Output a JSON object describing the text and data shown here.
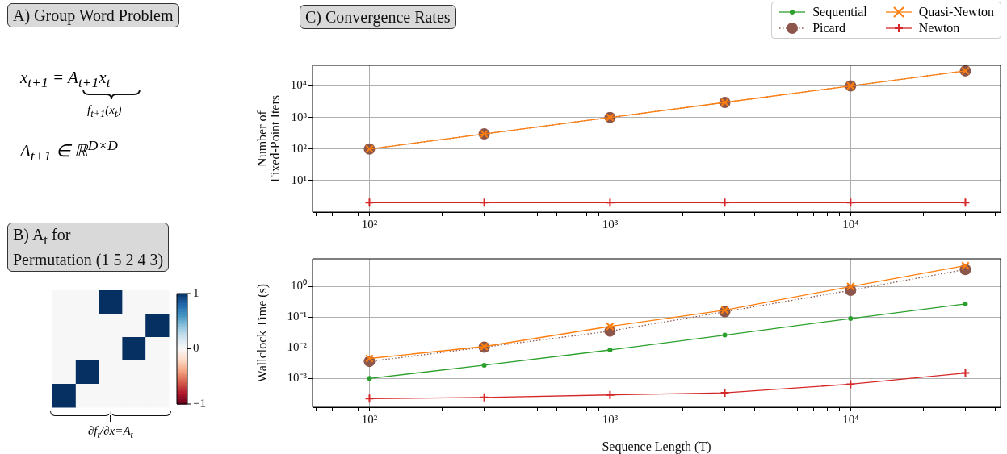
{
  "chart_data": [
    {
      "type": "other",
      "title": "A) Group Word Problem",
      "annotations": [
        "x$_{t+1}$ = A$_{t+1}$x$_{t}$",
        "f$_{t+1}$(x$_{t}$)",
        "A$_{t+1}$ ∈ ℝ$^{D×D}$"
      ]
    },
    {
      "type": "heatmap",
      "title": "B) A$_{t}$ for\nPermutation (1 5 2 4 3)",
      "xlabel": "∂f$_{t}$/∂x=A$_{t}$",
      "categories": [
        null,
        null,
        null,
        null,
        null
      ],
      "y_categories": [
        null,
        null,
        null,
        null,
        null
      ],
      "tick_labels": false,
      "cells": [
        [
          0,
          0,
          1,
          0,
          0
        ],
        [
          0,
          0,
          0,
          0,
          1
        ],
        [
          0,
          0,
          0,
          1,
          0
        ],
        [
          0,
          1,
          0,
          0,
          0
        ],
        [
          1,
          0,
          0,
          0,
          0
        ]
      ],
      "clim": [
        -1,
        1
      ],
      "cticks": [
        1,
        0,
        {
          "value": -1,
          "label": "−1"
        }
      ]
    },
    {
      "type": "line",
      "title": "C) Convergence Rates",
      "ylabel": "Number of\nFixed-Point Iters",
      "log": "xy",
      "grid": true,
      "legend": "top right",
      "x": [
        100,
        300,
        1000,
        3000,
        10000,
        30000
      ],
      "series": [
        {
          "name": "Sequential",
          "color": "#2ca02c",
          "marker": "circle",
          "line_style": "solid",
          "values": [
            null,
            null,
            null,
            null,
            null,
            null
          ]
        },
        {
          "name": "Picard",
          "color": "#8c564b",
          "marker": "circle",
          "line_style": "dotted",
          "values": [
            100,
            300,
            1000,
            3000,
            10000,
            30000
          ]
        },
        {
          "name": "Quasi-Newton",
          "color": "#ff7f0e",
          "marker": "cross",
          "line_style": "solid",
          "values": [
            100,
            300,
            1000,
            3000,
            10000,
            30000
          ]
        },
        {
          "name": "Newton",
          "color": "#d62728",
          "marker": "plus",
          "line_style": "solid",
          "values": [
            2,
            2,
            2,
            2,
            2,
            2
          ]
        }
      ],
      "xlim": [
        58,
        42000
      ],
      "xticks": [
        {
          "value": 60,
          "label": null
        },
        {
          "value": 70,
          "label": null
        },
        {
          "value": 80,
          "label": null
        },
        {
          "value": 90,
          "label": null
        },
        {
          "value": 100,
          "label": "10²"
        },
        {
          "value": 200,
          "label": null
        },
        {
          "value": 300,
          "label": null
        },
        {
          "value": 400,
          "label": null
        },
        {
          "value": 500,
          "label": null
        },
        {
          "value": 600,
          "label": null
        },
        {
          "value": 700,
          "label": null
        },
        {
          "value": 800,
          "label": null
        },
        {
          "value": 900,
          "label": null
        },
        {
          "value": 1000,
          "label": "10³"
        },
        {
          "value": 2000,
          "label": null
        },
        {
          "value": 3000,
          "label": null
        },
        {
          "value": 4000,
          "label": null
        },
        {
          "value": 5000,
          "label": null
        },
        {
          "value": 6000,
          "label": null
        },
        {
          "value": 7000,
          "label": null
        },
        {
          "value": 8000,
          "label": null
        },
        {
          "value": 9000,
          "label": null
        },
        {
          "value": 10000,
          "label": "10⁴"
        },
        {
          "value": 20000,
          "label": null
        },
        {
          "value": 30000,
          "label": null
        },
        {
          "value": 40000,
          "label": null
        }
      ],
      "ylim": [
        1,
        45000
      ],
      "yticks": [
        {
          "value": 10,
          "label": "10¹"
        },
        {
          "value": 100,
          "label": "10²"
        },
        {
          "value": 1000,
          "label": "10³"
        },
        {
          "value": 10000,
          "label": "10⁴"
        }
      ]
    },
    {
      "type": "line",
      "xlabel": "Sequence Length (T)",
      "ylabel": "Wallclock Time (s)",
      "log": "xy",
      "grid": true,
      "x": [
        100,
        300,
        1000,
        3000,
        10000,
        30000
      ],
      "series": [
        {
          "color": "#2ca02c",
          "marker": "circle",
          "line_style": "solid",
          "values": [
            0.001,
            0.0027,
            0.0085,
            0.026,
            0.09,
            0.27
          ]
        },
        {
          "color": "#8c564b",
          "marker": "circle",
          "line_style": "dotted",
          "values": [
            0.0036,
            0.0105,
            0.035,
            0.15,
            0.75,
            3.6
          ]
        },
        {
          "color": "#ff7f0e",
          "marker": "cross",
          "line_style": "solid",
          "values": [
            0.0045,
            0.011,
            0.05,
            0.17,
            1.0,
            4.8
          ]
        },
        {
          "color": "#d62728",
          "marker": "plus",
          "line_style": "solid",
          "values": [
            0.00022,
            0.00024,
            0.00029,
            0.00034,
            0.00065,
            0.0015
          ]
        }
      ],
      "xlim": [
        58,
        42000
      ],
      "xticks": [
        {
          "value": 60,
          "label": null
        },
        {
          "value": 70,
          "label": null
        },
        {
          "value": 80,
          "label": null
        },
        {
          "value": 90,
          "label": null
        },
        {
          "value": 100,
          "label": "10²"
        },
        {
          "value": 200,
          "label": null
        },
        {
          "value": 300,
          "label": null
        },
        {
          "value": 400,
          "label": null
        },
        {
          "value": 500,
          "label": null
        },
        {
          "value": 600,
          "label": null
        },
        {
          "value": 700,
          "label": null
        },
        {
          "value": 800,
          "label": null
        },
        {
          "value": 900,
          "label": null
        },
        {
          "value": 1000,
          "label": "10³"
        },
        {
          "value": 2000,
          "label": null
        },
        {
          "value": 3000,
          "label": null
        },
        {
          "value": 4000,
          "label": null
        },
        {
          "value": 5000,
          "label": null
        },
        {
          "value": 6000,
          "label": null
        },
        {
          "value": 7000,
          "label": null
        },
        {
          "value": 8000,
          "label": null
        },
        {
          "value": 9000,
          "label": null
        },
        {
          "value": 10000,
          "label": "10⁴"
        },
        {
          "value": 20000,
          "label": null
        },
        {
          "value": 30000,
          "label": null
        },
        {
          "value": 40000,
          "label": null
        }
      ],
      "ylim": [
        0.000115,
        8
      ],
      "yticks": [
        {
          "value": 0.001,
          "label": "10⁻³"
        },
        {
          "value": 0.01,
          "label": "10⁻²"
        },
        {
          "value": 0.1,
          "label": "10⁻¹"
        },
        {
          "value": 1,
          "label": "10⁰"
        }
      ]
    }
  ]
}
